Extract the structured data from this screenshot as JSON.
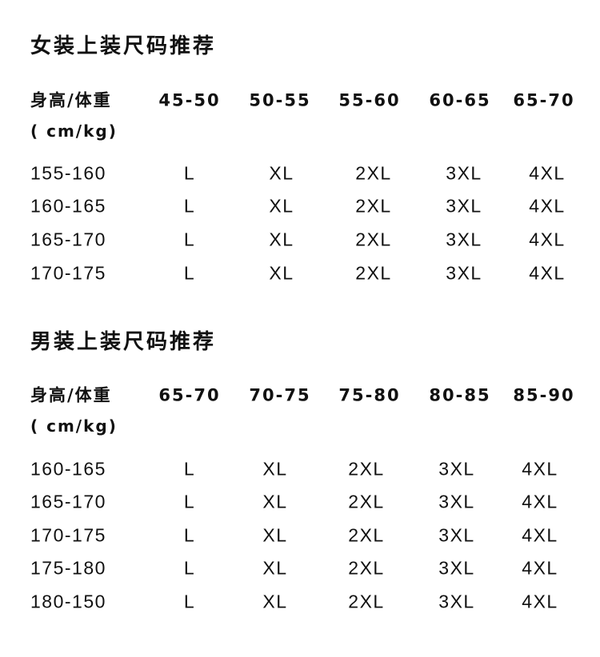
{
  "tables": [
    {
      "title": "女装上装尺码推荐",
      "corner_label": "身高/体重",
      "unit_label": "( cm/kg)",
      "weight_columns": [
        "45-50",
        "50-55",
        "55-60",
        "60-65",
        "65-70"
      ],
      "rows": [
        {
          "height": "155-160",
          "sizes": [
            "L",
            "XL",
            "2XL",
            "3XL",
            "4XL"
          ]
        },
        {
          "height": "160-165",
          "sizes": [
            "L",
            "XL",
            "2XL",
            "3XL",
            "4XL"
          ]
        },
        {
          "height": "165-170",
          "sizes": [
            "L",
            "XL",
            "2XL",
            "3XL",
            "4XL"
          ]
        },
        {
          "height": "170-175",
          "sizes": [
            "L",
            "XL",
            "2XL",
            "3XL",
            "4XL"
          ]
        }
      ]
    },
    {
      "title": "男装上装尺码推荐",
      "corner_label": "身高/体重",
      "unit_label": "( cm/kg)",
      "weight_columns": [
        "65-70",
        "70-75",
        "75-80",
        "80-85",
        "85-90"
      ],
      "rows": [
        {
          "height": "160-165",
          "sizes": [
            "L",
            "XL",
            "2XL",
            "3XL",
            "4XL"
          ]
        },
        {
          "height": "165-170",
          "sizes": [
            "L",
            "XL",
            "2XL",
            "3XL",
            "4XL"
          ]
        },
        {
          "height": "170-175",
          "sizes": [
            "L",
            "XL",
            "2XL",
            "3XL",
            "4XL"
          ]
        },
        {
          "height": "175-180",
          "sizes": [
            "L",
            "XL",
            "2XL",
            "3XL",
            "4XL"
          ]
        },
        {
          "height": "180-150",
          "sizes": [
            "L",
            "XL",
            "2XL",
            "3XL",
            "4XL"
          ]
        }
      ]
    }
  ]
}
